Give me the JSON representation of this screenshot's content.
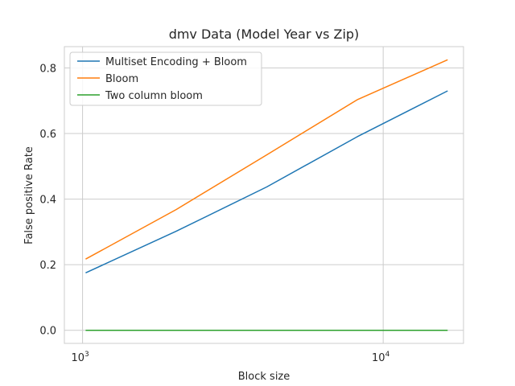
{
  "chart_data": {
    "type": "line",
    "title": "dmv Data (Model Year vs Zip)",
    "xlabel": "Block size",
    "ylabel": "False positive Rate",
    "xscale": "log",
    "xlim": [
      870,
      18500
    ],
    "ylim": [
      -0.04,
      0.865
    ],
    "grid": true,
    "legend_position": "top-left",
    "x": [
      1024,
      2048,
      4096,
      8192,
      16384
    ],
    "x_ticks": [
      {
        "value": 1000,
        "base": "10",
        "exp": "3"
      },
      {
        "value": 10000,
        "base": "10",
        "exp": "4"
      }
    ],
    "y_ticks": [
      {
        "value": 0.0,
        "label": "0.0"
      },
      {
        "value": 0.2,
        "label": "0.2"
      },
      {
        "value": 0.4,
        "label": "0.4"
      },
      {
        "value": 0.6,
        "label": "0.6"
      },
      {
        "value": 0.8,
        "label": "0.8"
      }
    ],
    "series": [
      {
        "name": "Multiset Encoding + Bloom",
        "color": "#1f77b4",
        "values": [
          0.175,
          0.302,
          0.437,
          0.59,
          0.73
        ]
      },
      {
        "name": "Bloom",
        "color": "#ff7f0e",
        "values": [
          0.217,
          0.368,
          0.535,
          0.703,
          0.825
        ]
      },
      {
        "name": "Two column bloom",
        "color": "#2ca02c",
        "values": [
          0.0,
          0.0,
          0.0,
          0.0,
          0.0
        ]
      }
    ]
  }
}
